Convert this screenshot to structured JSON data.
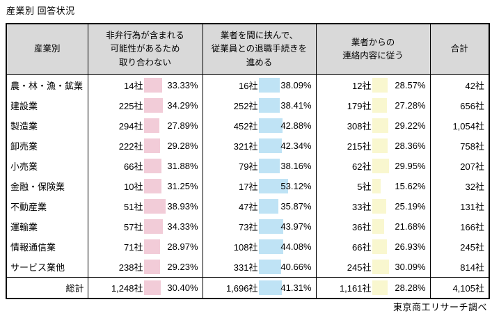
{
  "title": "産業別 回答状況",
  "source_note": "東京商工リサーチ調べ",
  "colors": {
    "header_bg": "#d9d9d9",
    "border": "#000000",
    "bar_answer1": "#f2ccd8",
    "bar_answer2": "#bfe3f5",
    "bar_answer3": "#f9f7cf"
  },
  "chart_data": {
    "type": "table",
    "title": "産業別 回答状況",
    "unit": "社",
    "notes": "各回答列は社数と構成比(%)。%セルにはデータバー(回答1=ピンク、回答2=青、回答3=黄)付き。",
    "columns": {
      "industry": "産業別",
      "answer1": "非弁行為が含まれる\n可能性があるため\n取り合わない",
      "answer2": "業者を間に挟んで、\n従業員との退職手続きを\n進める",
      "answer3": "業者からの\n連絡内容に従う",
      "total": "合計"
    },
    "rows": [
      {
        "label": "農・林・漁・鉱業",
        "c1": {
          "count": 14,
          "count_label": "14社",
          "pct": 33.33,
          "pct_label": "33.33%"
        },
        "c2": {
          "count": 16,
          "count_label": "16社",
          "pct": 38.09,
          "pct_label": "38.09%"
        },
        "c3": {
          "count": 12,
          "count_label": "12社",
          "pct": 28.57,
          "pct_label": "28.57%"
        },
        "total": {
          "count": 42,
          "label": "42社"
        }
      },
      {
        "label": "建設業",
        "c1": {
          "count": 225,
          "count_label": "225社",
          "pct": 34.29,
          "pct_label": "34.29%"
        },
        "c2": {
          "count": 252,
          "count_label": "252社",
          "pct": 38.41,
          "pct_label": "38.41%"
        },
        "c3": {
          "count": 179,
          "count_label": "179社",
          "pct": 27.28,
          "pct_label": "27.28%"
        },
        "total": {
          "count": 656,
          "label": "656社"
        }
      },
      {
        "label": "製造業",
        "c1": {
          "count": 294,
          "count_label": "294社",
          "pct": 27.89,
          "pct_label": "27.89%"
        },
        "c2": {
          "count": 452,
          "count_label": "452社",
          "pct": 42.88,
          "pct_label": "42.88%"
        },
        "c3": {
          "count": 308,
          "count_label": "308社",
          "pct": 29.22,
          "pct_label": "29.22%"
        },
        "total": {
          "count": 1054,
          "label": "1,054社"
        }
      },
      {
        "label": "卸売業",
        "c1": {
          "count": 222,
          "count_label": "222社",
          "pct": 29.28,
          "pct_label": "29.28%"
        },
        "c2": {
          "count": 321,
          "count_label": "321社",
          "pct": 42.34,
          "pct_label": "42.34%"
        },
        "c3": {
          "count": 215,
          "count_label": "215社",
          "pct": 28.36,
          "pct_label": "28.36%"
        },
        "total": {
          "count": 758,
          "label": "758社"
        }
      },
      {
        "label": "小売業",
        "c1": {
          "count": 66,
          "count_label": "66社",
          "pct": 31.88,
          "pct_label": "31.88%"
        },
        "c2": {
          "count": 79,
          "count_label": "79社",
          "pct": 38.16,
          "pct_label": "38.16%"
        },
        "c3": {
          "count": 62,
          "count_label": "62社",
          "pct": 29.95,
          "pct_label": "29.95%"
        },
        "total": {
          "count": 207,
          "label": "207社"
        }
      },
      {
        "label": "金融・保険業",
        "c1": {
          "count": 10,
          "count_label": "10社",
          "pct": 31.25,
          "pct_label": "31.25%"
        },
        "c2": {
          "count": 17,
          "count_label": "17社",
          "pct": 53.12,
          "pct_label": "53.12%"
        },
        "c3": {
          "count": 5,
          "count_label": "5社",
          "pct": 15.62,
          "pct_label": "15.62%"
        },
        "total": {
          "count": 32,
          "label": "32社"
        }
      },
      {
        "label": "不動産業",
        "c1": {
          "count": 51,
          "count_label": "51社",
          "pct": 38.93,
          "pct_label": "38.93%"
        },
        "c2": {
          "count": 47,
          "count_label": "47社",
          "pct": 35.87,
          "pct_label": "35.87%"
        },
        "c3": {
          "count": 33,
          "count_label": "33社",
          "pct": 25.19,
          "pct_label": "25.19%"
        },
        "total": {
          "count": 131,
          "label": "131社"
        }
      },
      {
        "label": "運輸業",
        "c1": {
          "count": 57,
          "count_label": "57社",
          "pct": 34.33,
          "pct_label": "34.33%"
        },
        "c2": {
          "count": 73,
          "count_label": "73社",
          "pct": 43.97,
          "pct_label": "43.97%"
        },
        "c3": {
          "count": 36,
          "count_label": "36社",
          "pct": 21.68,
          "pct_label": "21.68%"
        },
        "total": {
          "count": 166,
          "label": "166社"
        }
      },
      {
        "label": "情報通信業",
        "c1": {
          "count": 71,
          "count_label": "71社",
          "pct": 28.97,
          "pct_label": "28.97%"
        },
        "c2": {
          "count": 108,
          "count_label": "108社",
          "pct": 44.08,
          "pct_label": "44.08%"
        },
        "c3": {
          "count": 66,
          "count_label": "66社",
          "pct": 26.93,
          "pct_label": "26.93%"
        },
        "total": {
          "count": 245,
          "label": "245社"
        }
      },
      {
        "label": "サービス業他",
        "c1": {
          "count": 238,
          "count_label": "238社",
          "pct": 29.23,
          "pct_label": "29.23%"
        },
        "c2": {
          "count": 331,
          "count_label": "331社",
          "pct": 40.66,
          "pct_label": "40.66%"
        },
        "c3": {
          "count": 245,
          "count_label": "245社",
          "pct": 30.09,
          "pct_label": "30.09%"
        },
        "total": {
          "count": 814,
          "label": "814社"
        }
      }
    ],
    "total_row": {
      "label": "総計",
      "c1": {
        "count": 1248,
        "count_label": "1,248社",
        "pct": 30.4,
        "pct_label": "30.40%"
      },
      "c2": {
        "count": 1696,
        "count_label": "1,696社",
        "pct": 41.31,
        "pct_label": "41.31%"
      },
      "c3": {
        "count": 1161,
        "count_label": "1,161社",
        "pct": 28.28,
        "pct_label": "28.28%"
      },
      "total": {
        "count": 4105,
        "label": "4,105社"
      }
    }
  }
}
